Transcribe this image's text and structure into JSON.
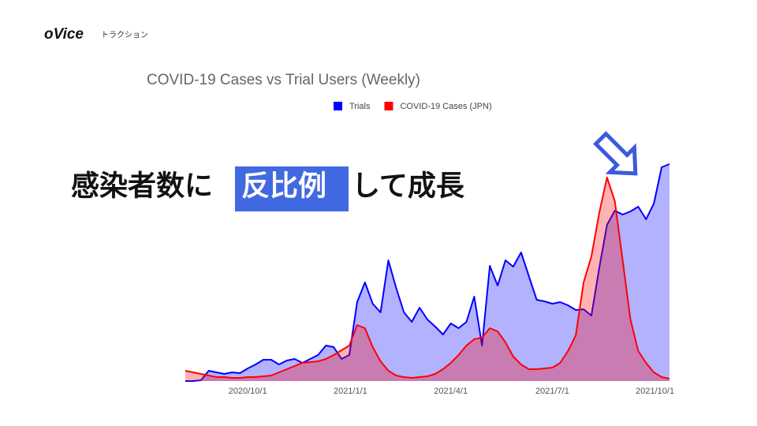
{
  "header": {
    "logo": "oVice",
    "section": "トラクション"
  },
  "headline": {
    "before": "感染者数に",
    "highlight": "反比例",
    "after": "して成長"
  },
  "chart_data": {
    "type": "area",
    "title": "COVID-19 Cases vs Trial Users (Weekly)",
    "x": [
      "2020/8/6",
      "2020/8/13",
      "2020/8/20",
      "2020/8/27",
      "2020/9/3",
      "2020/9/10",
      "2020/9/17",
      "2020/9/24",
      "2020/10/1",
      "2020/10/8",
      "2020/10/15",
      "2020/10/22",
      "2020/10/29",
      "2020/11/5",
      "2020/11/12",
      "2020/11/19",
      "2020/11/26",
      "2020/12/3",
      "2020/12/10",
      "2020/12/17",
      "2020/12/24",
      "2020/12/31",
      "2021/1/7",
      "2021/1/14",
      "2021/1/21",
      "2021/1/28",
      "2021/2/4",
      "2021/2/11",
      "2021/2/18",
      "2021/2/25",
      "2021/3/4",
      "2021/3/11",
      "2021/3/18",
      "2021/3/25",
      "2021/4/1",
      "2021/4/8",
      "2021/4/15",
      "2021/4/22",
      "2021/4/29",
      "2021/5/6",
      "2021/5/13",
      "2021/5/20",
      "2021/5/27",
      "2021/6/3",
      "2021/6/10",
      "2021/6/17",
      "2021/6/24",
      "2021/7/1",
      "2021/7/8",
      "2021/7/15",
      "2021/7/22",
      "2021/7/29",
      "2021/8/5",
      "2021/8/12",
      "2021/8/19",
      "2021/8/26",
      "2021/9/2",
      "2021/9/9",
      "2021/9/16",
      "2021/9/23",
      "2021/9/30",
      "2021/10/7",
      "2021/10/14"
    ],
    "xlim": [
      "2020/8/6",
      "2021/10/14"
    ],
    "xticks": [
      "2020/10/1",
      "2021/1/1",
      "2021/4/1",
      "2021/7/1",
      "2021/10/1"
    ],
    "ylim": [
      0,
      300
    ],
    "grid": false,
    "legend": "top",
    "series": [
      {
        "name": "Trials",
        "color": "#0000ff",
        "values": [
          0,
          0,
          1,
          13,
          11,
          9,
          11,
          10,
          16,
          21,
          27,
          27,
          21,
          26,
          28,
          23,
          28,
          33,
          45,
          43,
          28,
          33,
          100,
          125,
          98,
          87,
          153,
          118,
          87,
          75,
          93,
          78,
          69,
          59,
          73,
          67,
          75,
          107,
          45,
          146,
          121,
          153,
          145,
          163,
          133,
          103,
          101,
          98,
          100,
          96,
          90,
          91,
          83,
          143,
          198,
          216,
          211,
          215,
          221,
          205,
          225,
          271,
          275
        ]
      },
      {
        "name": "COVID-19 Cases (JPN)",
        "color": "#ff0000",
        "values": [
          13,
          11,
          9,
          7,
          5,
          5,
          4,
          4,
          5,
          5,
          6,
          7,
          11,
          15,
          19,
          23,
          24,
          25,
          28,
          33,
          39,
          45,
          71,
          67,
          43,
          25,
          13,
          7,
          5,
          4,
          5,
          6,
          9,
          15,
          23,
          33,
          45,
          53,
          55,
          67,
          63,
          49,
          31,
          21,
          15,
          15,
          16,
          17,
          23,
          38,
          58,
          125,
          158,
          213,
          258,
          228,
          153,
          78,
          38,
          23,
          11,
          5,
          3
        ]
      }
    ]
  }
}
